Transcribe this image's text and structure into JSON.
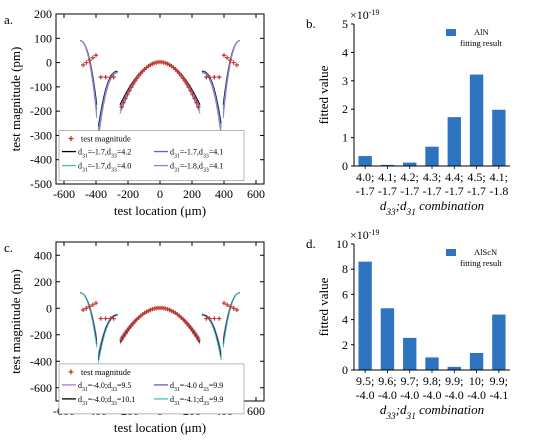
{
  "chart_data": [
    {
      "panel": "a.",
      "type": "scatter",
      "xlabel": "test location (μm)",
      "ylabel": "test magnitude (pm)",
      "xlim": [
        -650,
        650
      ],
      "ylim": [
        -500,
        200
      ],
      "xticks": [
        -600,
        -400,
        -200,
        0,
        200,
        400,
        600
      ],
      "yticks": [
        -500,
        -400,
        -300,
        -200,
        -100,
        0,
        100,
        200
      ],
      "xtick_labels": [
        "-600",
        "-400",
        "-200",
        "0",
        "200",
        "400",
        "600"
      ],
      "ytick_labels": [
        "-500",
        "-400",
        "-300",
        "-200",
        "-100",
        "0",
        "100",
        "200"
      ],
      "legend": {
        "marker": "test magnitude",
        "lines": [
          {
            "pre": "d",
            "sub1": "31",
            "mid": "=-1.7,d",
            "sub2": "33",
            "post": "=4.2",
            "color": "#000000"
          },
          {
            "pre": "d",
            "sub1": "31",
            "mid": "=-1.7,d",
            "sub2": "33",
            "post": "=4.1",
            "color": "#5b5bd6"
          },
          {
            "pre": "d",
            "sub1": "31",
            "mid": "=-1.7,d",
            "sub2": "33",
            "post": "=4.0",
            "color": "#3cc8a8"
          },
          {
            "pre": "d",
            "sub1": "31",
            "mid": "=-1.8,d",
            "sub2": "33",
            "post": "=4.1",
            "color": "#a774d8"
          }
        ]
      }
    },
    {
      "panel": "b.",
      "type": "bar",
      "ylabel": "fitted value",
      "multiplier": "×10",
      "multiplier_exp": "-19",
      "legend": [
        "AlN",
        "fitting result"
      ],
      "ylim": [
        0,
        5
      ],
      "yticks": [
        0,
        1,
        2,
        3,
        4,
        5
      ],
      "ytick_labels": [
        "0",
        "1",
        "2",
        "3",
        "4",
        "5"
      ],
      "categories": [
        [
          "4.0;",
          "-1.7"
        ],
        [
          "4.1;",
          "-1.7"
        ],
        [
          "4.2;",
          "-1.7"
        ],
        [
          "4.3;",
          "-1.7"
        ],
        [
          "4.4;",
          "-1.7"
        ],
        [
          "4.5;",
          "-1.7"
        ],
        [
          "4.1;",
          "-1.8"
        ]
      ],
      "values": [
        0.35,
        0.04,
        0.12,
        0.68,
        1.72,
        3.22,
        1.98
      ],
      "xlabel": {
        "pre": "d",
        "sub1": "33",
        "mid": ";d",
        "sub2": "31",
        "post": " combination"
      }
    },
    {
      "panel": "c.",
      "type": "scatter",
      "xlabel": "test location (μm)",
      "ylabel": "test magnitude (pm)",
      "xlim": [
        -650,
        650
      ],
      "ylim": [
        -700,
        500
      ],
      "xticks": [
        -600,
        -400,
        -200,
        0,
        200,
        400,
        600
      ],
      "yticks": [
        -600,
        -400,
        -200,
        0,
        200,
        400
      ],
      "xtick_labels": [
        "-600",
        "-400",
        "-200",
        "0",
        "200",
        "400",
        "600"
      ],
      "ytick_labels": [
        "-600",
        "-400",
        "-200",
        "0",
        "200",
        "400"
      ],
      "legend": {
        "marker": "test magnitude",
        "lines": [
          {
            "pre": "d",
            "sub1": "31",
            "mid": "=-4.0;d",
            "sub2": "33",
            "post": "=9.5",
            "color": "#a774d8"
          },
          {
            "pre": "d",
            "sub1": "31",
            "mid": "=-4.0 d",
            "sub2": "33",
            "post": "=9.9",
            "color": "#5b5bd6"
          },
          {
            "pre": "d",
            "sub1": "31",
            "mid": "=-4.0;d",
            "sub2": "33",
            "post": "=10.1",
            "color": "#000000"
          },
          {
            "pre": "d",
            "sub1": "31",
            "mid": "=-4.1;d",
            "sub2": "33",
            "post": "=9.9",
            "color": "#3cc8a8"
          }
        ]
      }
    },
    {
      "panel": "d.",
      "type": "bar",
      "ylabel": "fitted value",
      "multiplier": "×10",
      "multiplier_exp": "-19",
      "legend": [
        "AlScN",
        "fitting result"
      ],
      "ylim": [
        0,
        10
      ],
      "yticks": [
        0,
        2,
        4,
        6,
        8,
        10
      ],
      "ytick_labels": [
        "0",
        "2",
        "4",
        "6",
        "8",
        "10"
      ],
      "categories": [
        [
          "9.5;",
          "-4.0"
        ],
        [
          "9.6;",
          "-4.0"
        ],
        [
          "9.7;",
          "-4.0"
        ],
        [
          "9.8;",
          "-4.0"
        ],
        [
          "9.9;",
          "-4.0"
        ],
        [
          "10;",
          "-4.0"
        ],
        [
          "9.9;",
          "-4.1"
        ]
      ],
      "values": [
        8.6,
        4.9,
        2.55,
        1.0,
        0.25,
        1.35,
        4.4
      ],
      "xlabel": {
        "pre": "d",
        "sub1": "33",
        "mid": ";d",
        "sub2": "31",
        "post": " combination"
      }
    }
  ],
  "colors": {
    "bar": "#2e74c0",
    "marker": "#c0392b"
  }
}
